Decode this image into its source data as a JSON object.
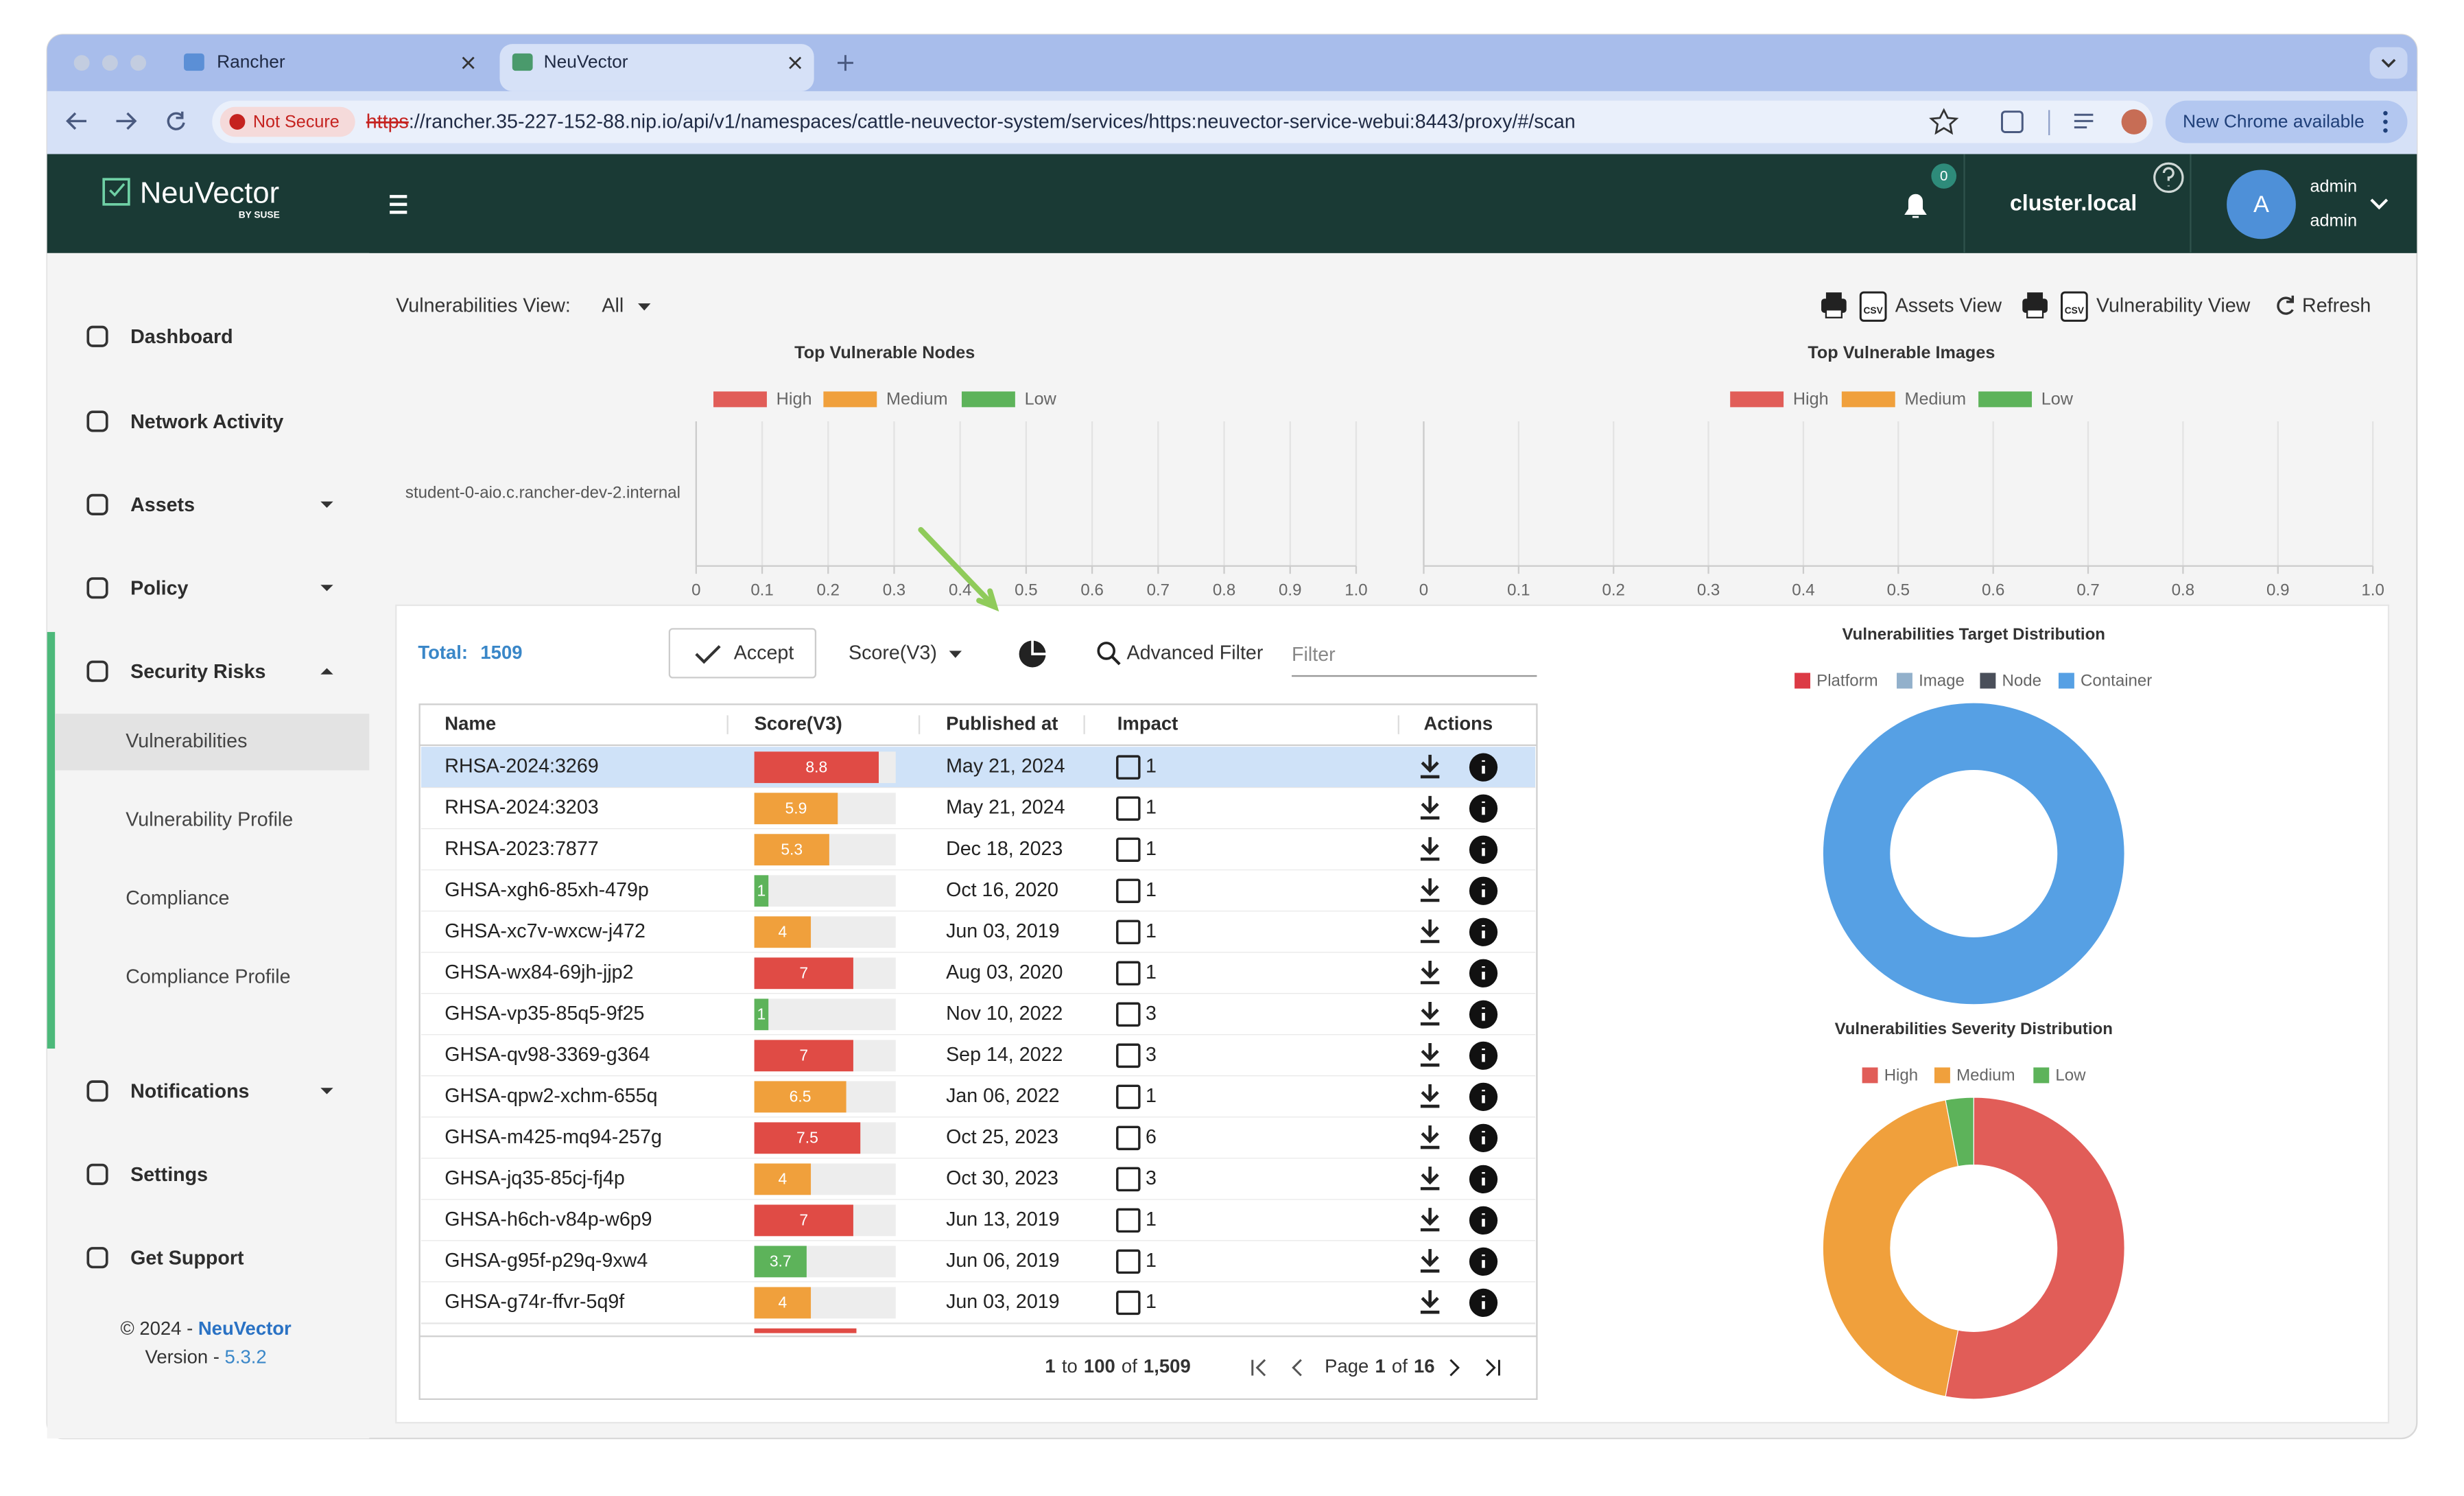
{
  "browser": {
    "tabs": [
      "Rancher",
      "NeuVector"
    ],
    "security": "Not Secure",
    "url_scheme": "https",
    "url_rest": "://rancher.35-227-152-88.nip.io/api/v1/namespaces/cattle-neuvector-system/services/https:neuvector-service-webui:8443/proxy/#/scan",
    "update": "New Chrome available"
  },
  "header": {
    "logo": "NeuVector",
    "logo_sub": "BY SUSE",
    "notifications": "0",
    "cluster": "cluster.local",
    "avatar": "A",
    "user": "admin",
    "role": "admin"
  },
  "sidebar": {
    "items": [
      "Dashboard",
      "Network Activity",
      "Assets",
      "Policy",
      "Security Risks"
    ],
    "sub_items": [
      "Vulnerabilities",
      "Vulnerability Profile",
      "Compliance",
      "Compliance Profile"
    ],
    "bottom_items": [
      "Notifications",
      "Settings",
      "Get Support"
    ],
    "copyright": "© 2024 - ",
    "brand": "NeuVector",
    "version_label": "Version - ",
    "version": "5.3.2"
  },
  "toolbar": {
    "view_label": "Vulnerabilities View:",
    "view_value": "All",
    "csv_icon": "CSV",
    "assets_view": "Assets View",
    "vuln_view": "Vulnerability View",
    "refresh": "Refresh"
  },
  "charts": {
    "nodes": {
      "type": "bar",
      "title": "Top Vulnerable Nodes",
      "categories": [
        "student-0-aio.c.rancher-dev-2.internal"
      ],
      "series": [
        {
          "name": "High",
          "color": "#e15d58",
          "values": [
            0
          ]
        },
        {
          "name": "Medium",
          "color": "#f0a03c",
          "values": [
            0
          ]
        },
        {
          "name": "Low",
          "color": "#5db35a",
          "values": [
            0
          ]
        }
      ],
      "xlim": [
        0,
        1
      ],
      "xticks": [
        0,
        0.1,
        0.2,
        0.3,
        0.4,
        0.5,
        0.6,
        0.7,
        0.8,
        0.9,
        {
          "value": 1,
          "label": "1.0"
        }
      ],
      "grid": true
    },
    "images": {
      "type": "bar",
      "title": "Top Vulnerable Images",
      "categories": [],
      "series": [
        {
          "name": "High",
          "color": "#e15d58",
          "values": []
        },
        {
          "name": "Medium",
          "color": "#f0a03c",
          "values": []
        },
        {
          "name": "Low",
          "color": "#5db35a",
          "values": []
        }
      ],
      "xlim": [
        0,
        1
      ],
      "xticks": [
        0,
        0.1,
        0.2,
        0.3,
        0.4,
        0.5,
        0.6,
        0.7,
        0.8,
        0.9,
        {
          "value": 1,
          "label": "1.0"
        }
      ],
      "grid": true
    },
    "target": {
      "type": "pie",
      "title": "Vulnerabilities Target Distribution",
      "categories": [
        "Platform",
        "Image",
        "Node",
        "Container"
      ],
      "colors": [
        "#dc3a45",
        "#92b0cb",
        "#4a4f5a",
        "#56a0e4"
      ],
      "values": [
        0,
        0,
        0,
        100
      ]
    },
    "severity": {
      "type": "pie",
      "title": "Vulnerabilities Severity Distribution",
      "categories": [
        "High",
        "Medium",
        "Low"
      ],
      "colors": [
        "#e15d58",
        "#f0a03c",
        "#5db35a"
      ],
      "values": [
        53,
        44,
        3
      ]
    }
  },
  "table": {
    "total_label": "Total:",
    "total": "1509",
    "accept": "Accept",
    "sort": "Score(V3)",
    "advanced_filter": "Advanced Filter",
    "filter_placeholder": "Filter",
    "columns": [
      "Name",
      "Score(V3)",
      "Published at",
      "Impact",
      "Actions"
    ],
    "rows": [
      [
        "RHSA-2024:3269",
        8.8,
        "May 21, 2024",
        1
      ],
      [
        "RHSA-2024:3203",
        5.9,
        "May 21, 2024",
        1
      ],
      [
        "RHSA-2023:7877",
        5.3,
        "Dec 18, 2023",
        1
      ],
      [
        "GHSA-xgh6-85xh-479p",
        1,
        "Oct 16, 2020",
        1
      ],
      [
        "GHSA-xc7v-wxcw-j472",
        4,
        "Jun 03, 2019",
        1
      ],
      [
        "GHSA-wx84-69jh-jjp2",
        7,
        "Aug 03, 2020",
        1
      ],
      [
        "GHSA-vp35-85q5-9f25",
        1,
        "Nov 10, 2022",
        3
      ],
      [
        "GHSA-qv98-3369-g364",
        7,
        "Sep 14, 2022",
        3
      ],
      [
        "GHSA-qpw2-xchm-655q",
        6.5,
        "Jan 06, 2022",
        1
      ],
      [
        "GHSA-m425-mq94-257g",
        7.5,
        "Oct 25, 2023",
        6
      ],
      [
        "GHSA-jq35-85cj-fj4p",
        4,
        "Oct 30, 2023",
        3
      ],
      [
        "GHSA-h6ch-v84p-w6p9",
        7,
        "Jun 13, 2019",
        1
      ],
      [
        "GHSA-g95f-p29q-9xw4",
        3.7,
        "Jun 06, 2019",
        1
      ],
      [
        "GHSA-g74r-ffvr-5q9f",
        4,
        "Jun 03, 2019",
        1
      ]
    ],
    "pagination": {
      "from": "1",
      "to_word": "to",
      "to": "100",
      "of_word": "of",
      "total": "1,509",
      "page_word": "Page",
      "page": "1",
      "pages": "16"
    }
  }
}
